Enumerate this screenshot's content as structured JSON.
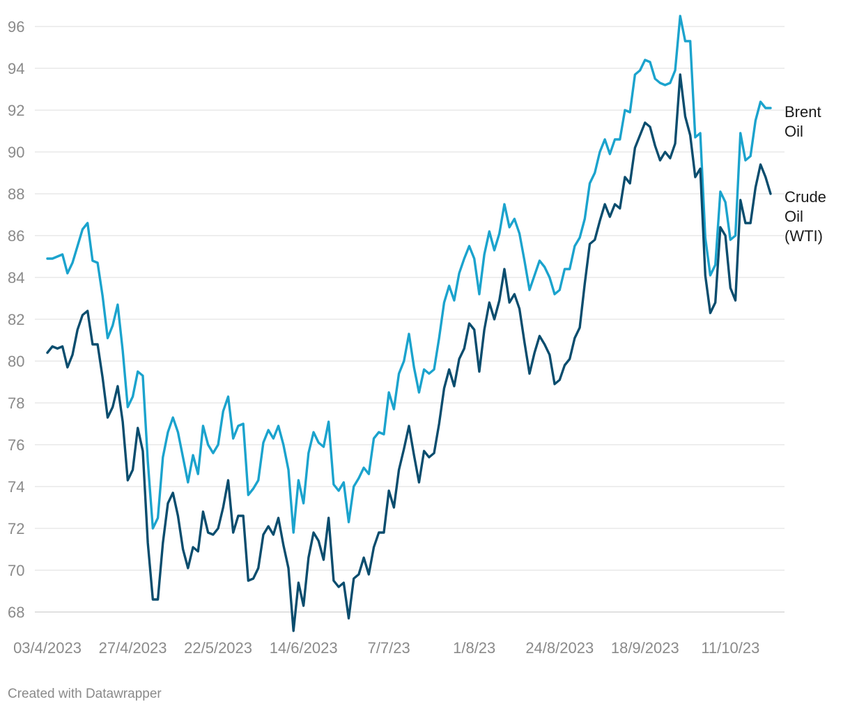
{
  "footer": "Created with Datawrapper",
  "chart_data": {
    "type": "line",
    "title": "",
    "xlabel": "",
    "ylabel": "",
    "grid": true,
    "ylim": [
      67,
      96.6
    ],
    "y_ticks": [
      68,
      70,
      72,
      74,
      76,
      78,
      80,
      82,
      84,
      86,
      88,
      90,
      92,
      94,
      96
    ],
    "x_ticks": [
      {
        "index": 0,
        "label": "03/4/2023"
      },
      {
        "index": 17,
        "label": "27/4/2023"
      },
      {
        "index": 34,
        "label": "22/5/2023"
      },
      {
        "index": 51,
        "label": "14/6/2023"
      },
      {
        "index": 68,
        "label": "7/7/23"
      },
      {
        "index": 85,
        "label": "1/8/23"
      },
      {
        "index": 102,
        "label": "24/8/2023"
      },
      {
        "index": 119,
        "label": "18/9/2023"
      },
      {
        "index": 136,
        "label": "11/10/23"
      }
    ],
    "series": [
      {
        "name": "Brent Oil",
        "label_lines": [
          "Brent",
          "Oil"
        ],
        "color": "#1ba3cd",
        "values": [
          84.9,
          84.9,
          85.0,
          85.1,
          84.2,
          84.7,
          85.5,
          86.3,
          86.6,
          84.8,
          84.7,
          83.1,
          81.1,
          81.7,
          82.7,
          80.5,
          77.8,
          78.3,
          79.5,
          79.3,
          75.2,
          72.0,
          72.5,
          75.4,
          76.6,
          77.3,
          76.6,
          75.4,
          74.2,
          75.5,
          74.6,
          76.9,
          76.0,
          75.6,
          76.0,
          77.6,
          78.3,
          76.3,
          76.9,
          77.0,
          73.6,
          73.9,
          74.3,
          76.1,
          76.7,
          76.3,
          76.9,
          76.0,
          74.8,
          71.8,
          74.3,
          73.2,
          75.6,
          76.6,
          76.1,
          75.9,
          77.1,
          74.1,
          73.8,
          74.2,
          72.3,
          74.0,
          74.4,
          74.9,
          74.6,
          76.3,
          76.6,
          76.5,
          78.5,
          77.7,
          79.4,
          80.0,
          81.3,
          79.7,
          78.5,
          79.6,
          79.4,
          79.6,
          81.1,
          82.8,
          83.6,
          82.9,
          84.2,
          84.9,
          85.5,
          84.9,
          83.2,
          85.1,
          86.2,
          85.3,
          86.1,
          87.5,
          86.4,
          86.8,
          86.1,
          84.8,
          83.4,
          84.1,
          84.8,
          84.5,
          84.0,
          83.2,
          83.4,
          84.4,
          84.4,
          85.5,
          85.9,
          86.8,
          88.5,
          89.0,
          90.0,
          90.6,
          89.9,
          90.6,
          90.6,
          92.0,
          91.9,
          93.7,
          93.9,
          94.4,
          94.3,
          93.5,
          93.3,
          93.2,
          93.3,
          93.9,
          96.5,
          95.3,
          95.3,
          90.7,
          90.9,
          85.9,
          84.1,
          84.6,
          88.1,
          87.6,
          85.8,
          86.0,
          90.9,
          89.6,
          89.8,
          91.5,
          92.4,
          92.1,
          92.1
        ]
      },
      {
        "name": "Crude Oil (WTI)",
        "label_lines": [
          "Crude",
          "Oil",
          "(WTI)"
        ],
        "color": "#0a4d6e",
        "values": [
          80.4,
          80.7,
          80.6,
          80.7,
          79.7,
          80.3,
          81.5,
          82.2,
          82.4,
          80.8,
          80.8,
          79.2,
          77.3,
          77.8,
          78.8,
          77.1,
          74.3,
          74.8,
          76.8,
          75.7,
          71.3,
          68.6,
          68.6,
          71.3,
          73.2,
          73.7,
          72.6,
          71.0,
          70.1,
          71.1,
          70.9,
          72.8,
          71.8,
          71.7,
          72.0,
          73.0,
          74.3,
          71.8,
          72.6,
          72.6,
          69.5,
          69.6,
          70.1,
          71.7,
          72.1,
          71.7,
          72.5,
          71.2,
          70.1,
          67.1,
          69.4,
          68.3,
          70.6,
          71.8,
          71.4,
          70.5,
          72.5,
          69.5,
          69.2,
          69.4,
          67.7,
          69.6,
          69.8,
          70.6,
          69.8,
          71.1,
          71.8,
          71.8,
          73.8,
          73.0,
          74.8,
          75.8,
          76.9,
          75.5,
          74.2,
          75.7,
          75.4,
          75.6,
          77.0,
          78.7,
          79.6,
          78.8,
          80.1,
          80.6,
          81.8,
          81.5,
          79.5,
          81.5,
          82.8,
          82.0,
          82.9,
          84.4,
          82.8,
          83.2,
          82.5,
          80.9,
          79.4,
          80.4,
          81.2,
          80.8,
          80.3,
          78.9,
          79.1,
          79.8,
          80.1,
          81.1,
          81.6,
          83.7,
          85.6,
          85.8,
          86.7,
          87.5,
          86.9,
          87.5,
          87.3,
          88.8,
          88.5,
          90.2,
          90.8,
          91.4,
          91.2,
          90.3,
          89.6,
          90.0,
          89.7,
          90.4,
          93.7,
          91.7,
          90.8,
          88.8,
          89.2,
          84.1,
          82.3,
          82.8,
          86.4,
          86.0,
          83.5,
          82.9,
          87.7,
          86.6,
          86.6,
          88.3,
          89.4,
          88.8,
          88.0
        ]
      }
    ]
  }
}
